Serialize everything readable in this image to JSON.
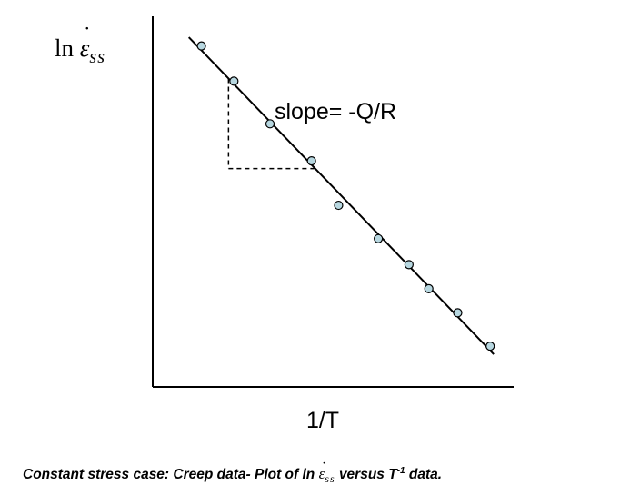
{
  "chart_data": {
    "type": "scatter",
    "xlabel": "1/T",
    "ylabel": {
      "prefix": "ln",
      "symbol": "ε",
      "subscript": "ss"
    },
    "annotation": "slope= -Q/R",
    "fit_line": true,
    "slope_triangle": true,
    "grid": false,
    "ticks": false,
    "point_color": "#b7d7e0",
    "points_normalized": [
      {
        "x": 0.135,
        "y": 0.92
      },
      {
        "x": 0.225,
        "y": 0.825
      },
      {
        "x": 0.325,
        "y": 0.71
      },
      {
        "x": 0.44,
        "y": 0.61
      },
      {
        "x": 0.515,
        "y": 0.49
      },
      {
        "x": 0.625,
        "y": 0.4
      },
      {
        "x": 0.71,
        "y": 0.33
      },
      {
        "x": 0.765,
        "y": 0.265
      },
      {
        "x": 0.845,
        "y": 0.2
      },
      {
        "x": 0.935,
        "y": 0.11
      }
    ]
  },
  "caption": {
    "part1": "Constant stress case: Creep data- Plot of ln ",
    "symbol": "ε",
    "subscript": "ss",
    "part2": " versus T",
    "superscript": "-1",
    "part3": " data."
  }
}
